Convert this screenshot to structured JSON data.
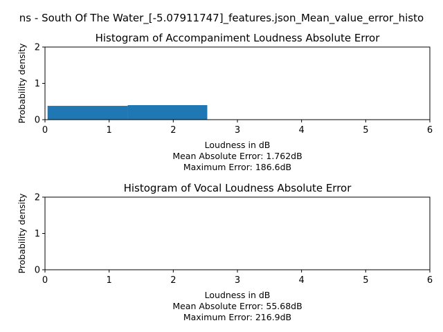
{
  "figure": {
    "suptitle": "ns - South Of The Water_[-5.07911747]_features.json_Mean_value_error_histo"
  },
  "chart_data": [
    {
      "type": "bar",
      "title": "Histogram of Accompaniment Loudness Absolute Error",
      "xlabel": "Loudness in dB",
      "xlabel_lines": [
        "Loudness in dB",
        "Mean Absolute Error: 1.762dB",
        "Maximum Error: 186.6dB"
      ],
      "ylabel": "Probability density",
      "xlim": [
        0,
        6
      ],
      "ylim": [
        0,
        2
      ],
      "xticks": [
        0,
        1,
        2,
        3,
        4,
        5,
        6
      ],
      "yticks": [
        0,
        1,
        2
      ],
      "grid": false,
      "color": "#1f77b4",
      "bins": [
        {
          "x0": 0.04,
          "x1": 1.29,
          "value": 0.38
        },
        {
          "x0": 1.29,
          "x1": 2.53,
          "value": 0.4
        }
      ],
      "mean_absolute_error": "1.762dB",
      "maximum_error": "186.6dB"
    },
    {
      "type": "bar",
      "title": "Histogram of Vocal Loudness Absolute Error",
      "xlabel": "Loudness in dB",
      "xlabel_lines": [
        "Loudness in dB",
        "Mean Absolute Error: 55.68dB",
        "Maximum Error: 216.9dB"
      ],
      "ylabel": "Probability density",
      "xlim": [
        0,
        6
      ],
      "ylim": [
        0,
        2
      ],
      "xticks": [
        0,
        1,
        2,
        3,
        4,
        5,
        6
      ],
      "yticks": [
        0,
        1,
        2
      ],
      "grid": false,
      "color": "#1f77b4",
      "bins": [],
      "mean_absolute_error": "55.68dB",
      "maximum_error": "216.9dB"
    }
  ]
}
